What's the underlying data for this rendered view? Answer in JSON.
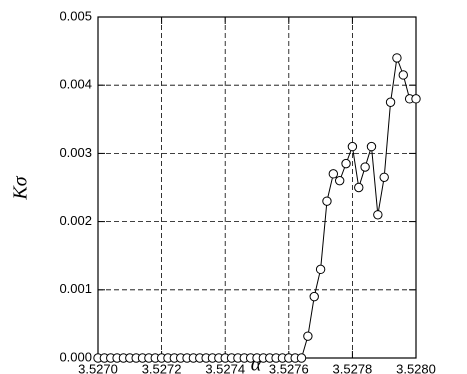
{
  "chart_data": {
    "type": "line",
    "xlabel": "α",
    "ylabel": "Kσ",
    "x": [
      3.527,
      3.52702,
      3.52704,
      3.52706,
      3.52708,
      3.5271,
      3.52712,
      3.52714,
      3.52716,
      3.52718,
      3.5272,
      3.52722,
      3.52724,
      3.52726,
      3.52728,
      3.5273,
      3.52732,
      3.52734,
      3.52736,
      3.52738,
      3.5274,
      3.52742,
      3.52744,
      3.52746,
      3.52748,
      3.5275,
      3.52752,
      3.52754,
      3.52756,
      3.52758,
      3.5276,
      3.52762,
      3.52764,
      3.52766,
      3.52768,
      3.5277,
      3.52772,
      3.52774,
      3.52776,
      3.52778,
      3.5278,
      3.52782,
      3.52784,
      3.52786,
      3.52788,
      3.5279,
      3.52792,
      3.52794,
      3.52796,
      3.52798,
      3.528
    ],
    "series": [
      {
        "color": "#000000",
        "values": [
          0,
          0,
          0,
          0,
          0,
          0,
          0,
          0,
          0,
          0,
          0,
          0,
          0,
          0,
          0,
          0,
          0,
          0,
          0,
          0,
          0,
          0,
          0,
          0,
          0,
          0,
          0,
          0,
          0,
          0,
          0,
          0,
          0.0,
          0.00032,
          0.0009,
          0.0013,
          0.0023,
          0.0027,
          0.0026,
          0.00285,
          0.0031,
          0.0025,
          0.0028,
          0.0031,
          0.0021,
          0.00265,
          0.00375,
          0.0044,
          0.00415,
          0.0038,
          0.0038
        ]
      }
    ],
    "xlim": [
      3.527,
      3.528
    ],
    "xticks": [
      {
        "value": 3.527,
        "label": "3.5270"
      },
      {
        "value": 3.5272,
        "label": "3.5272"
      },
      {
        "value": 3.5274,
        "label": "3.5274"
      },
      {
        "value": 3.5276,
        "label": "3.5276"
      },
      {
        "value": 3.5278,
        "label": "3.5278"
      },
      {
        "value": 3.528,
        "label": "3.5280"
      }
    ],
    "ylim": [
      0,
      0.005
    ],
    "yticks": [
      {
        "value": 0,
        "label": "0.000"
      },
      0.001,
      0.002,
      0.003,
      0.004,
      0.005
    ],
    "grid": true
  }
}
